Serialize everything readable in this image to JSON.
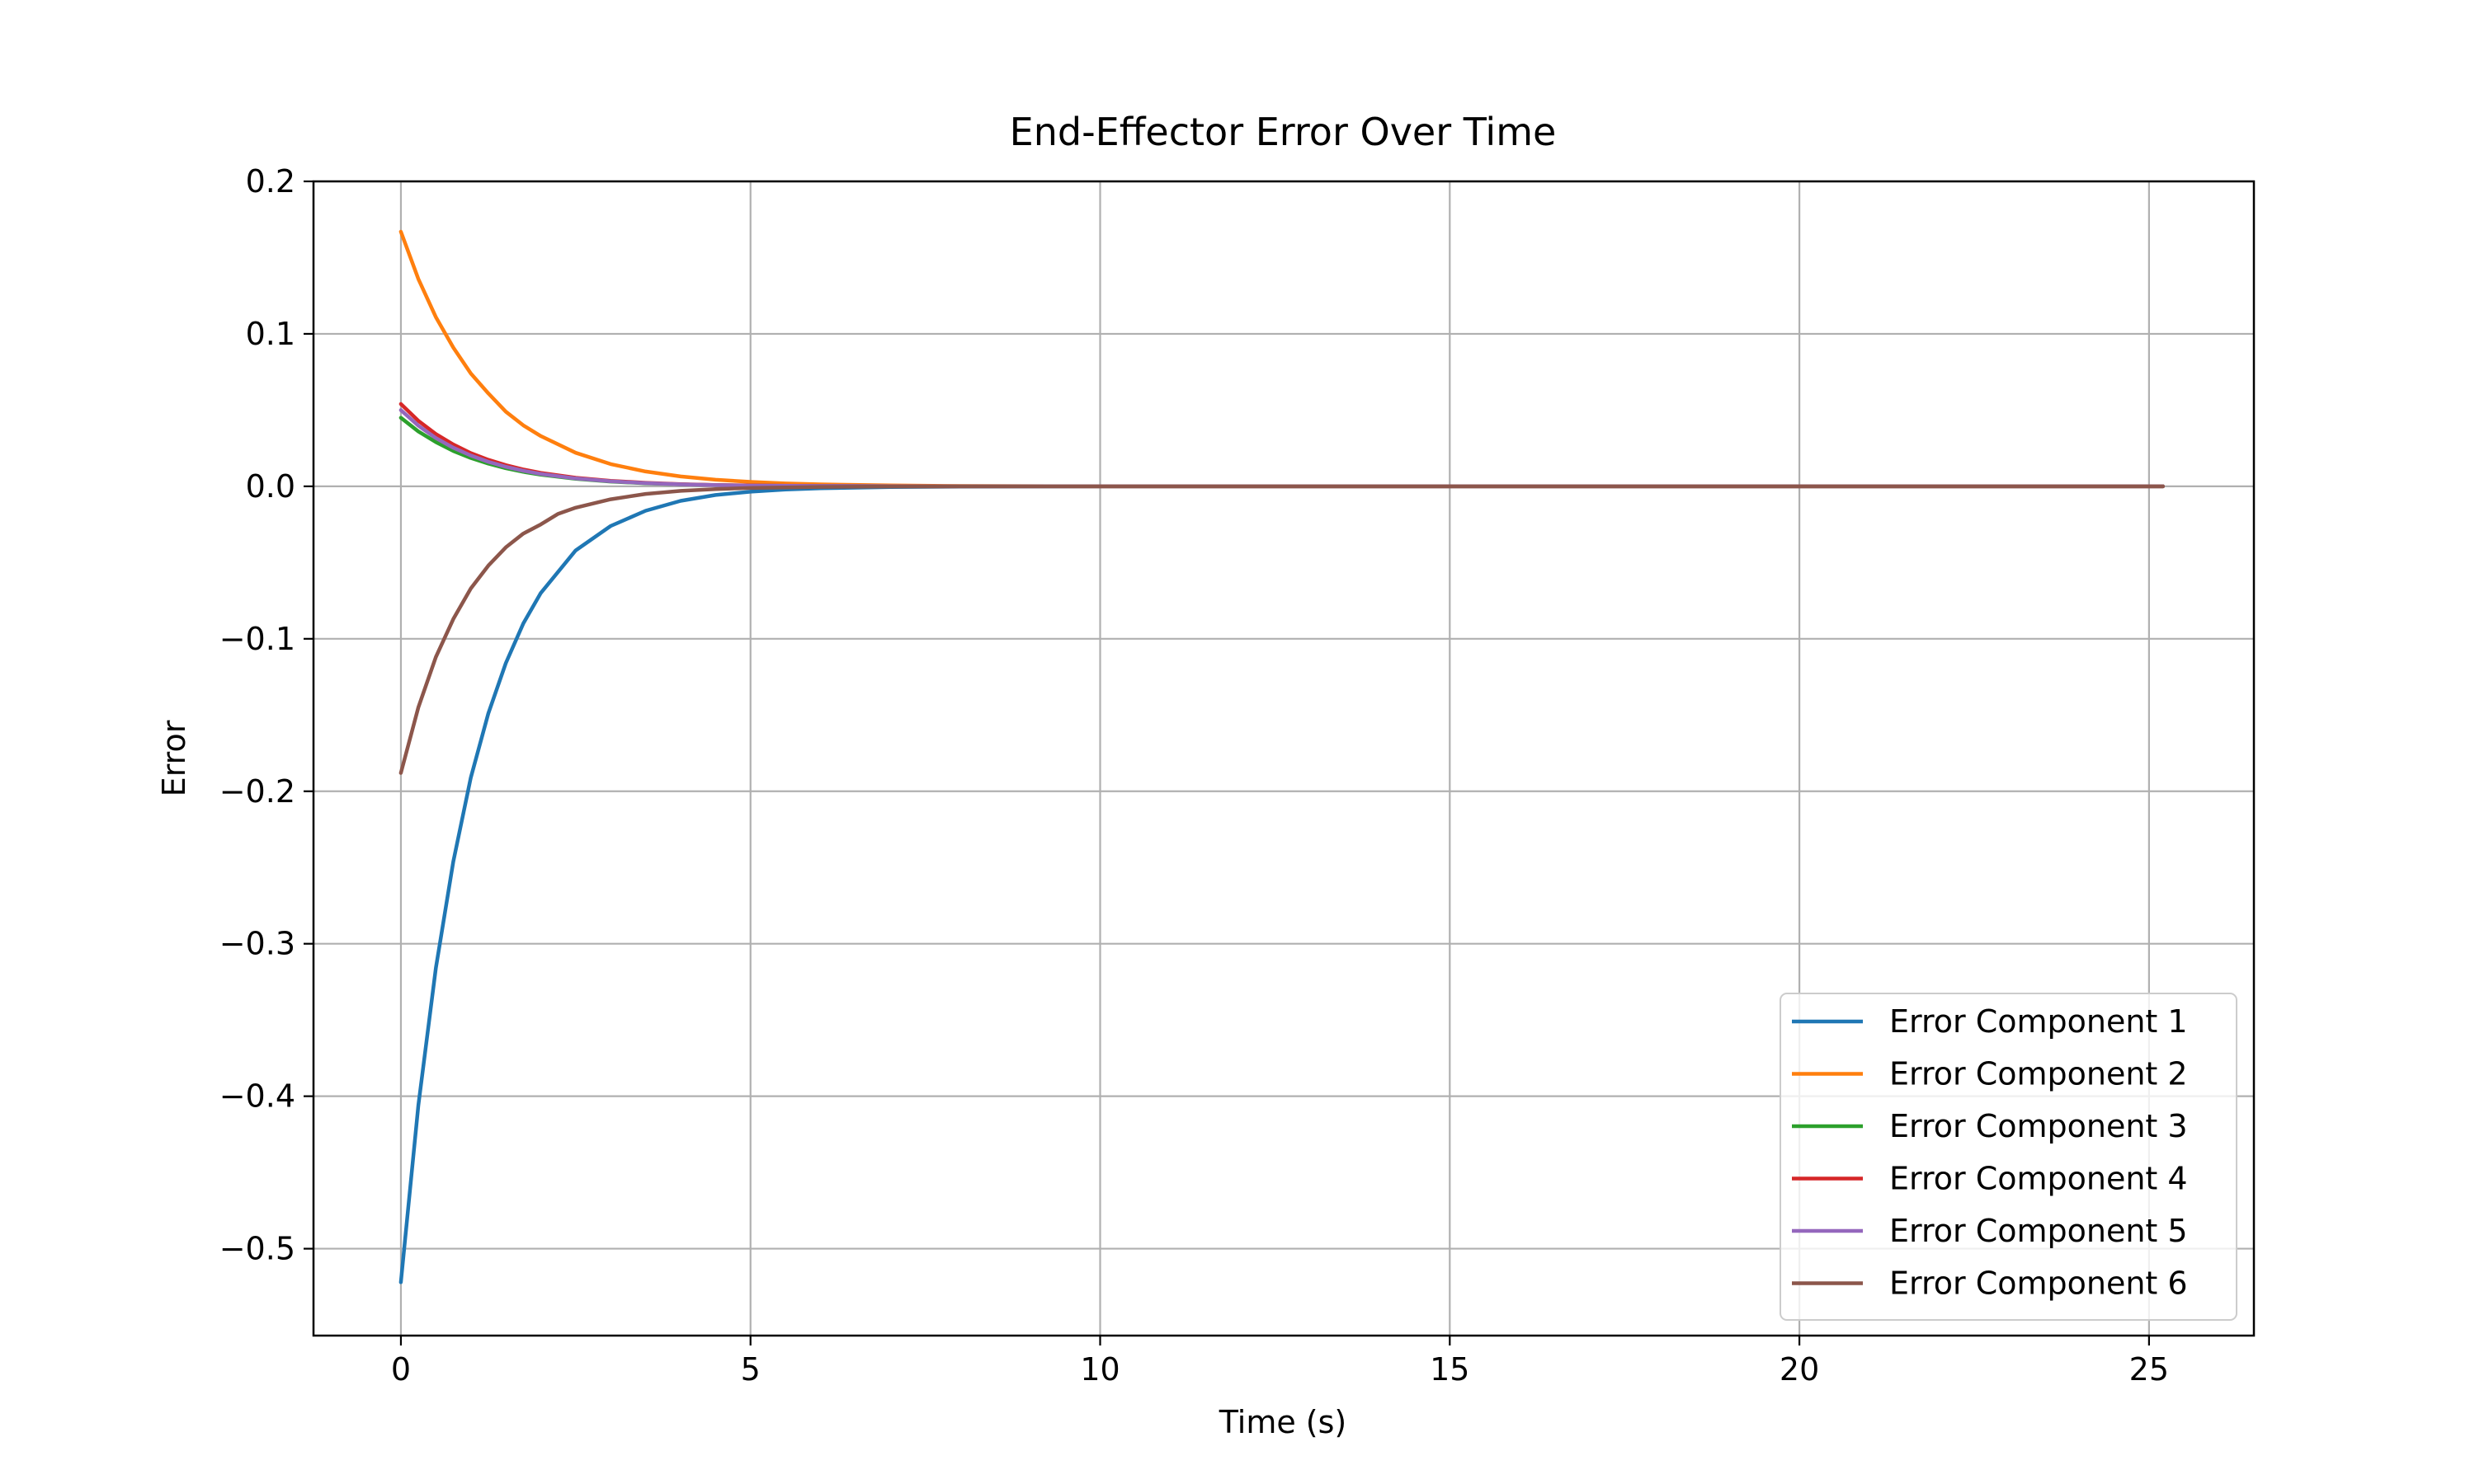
{
  "chart_data": {
    "type": "line",
    "title": "End-Effector Error Over Time",
    "xlabel": "Time (s)",
    "ylabel": "Error",
    "xlim": [
      -1.25,
      26.5
    ],
    "ylim": [
      -0.557,
      0.2
    ],
    "xticks": [
      0,
      5,
      10,
      15,
      20,
      25
    ],
    "xtick_labels": [
      "0",
      "5",
      "10",
      "15",
      "20",
      "25"
    ],
    "yticks": [
      0.2,
      0.1,
      0.0,
      -0.1,
      -0.2,
      -0.3,
      -0.4,
      -0.5
    ],
    "ytick_labels": [
      "0.2",
      "0.1",
      "0.0",
      "−0.1",
      "−0.2",
      "−0.3",
      "−0.4",
      "−0.5"
    ],
    "grid": true,
    "legend_position": "lower-right",
    "series": [
      {
        "name": "Error Component 1",
        "color": "#1f77b4",
        "x": [
          0,
          0.25,
          0.5,
          0.75,
          1.0,
          1.25,
          1.5,
          1.75,
          2.0,
          2.5,
          3.0,
          3.5,
          4.0,
          4.5,
          5.0,
          5.5,
          6.0,
          7.0,
          8.0,
          10.0,
          12.5,
          15.0,
          17.5,
          20.0,
          22.5,
          25.2
        ],
        "y": [
          -0.522,
          -0.406,
          -0.316,
          -0.246,
          -0.191,
          -0.149,
          -0.116,
          -0.09,
          -0.07,
          -0.042,
          -0.026,
          -0.016,
          -0.0095,
          -0.0057,
          -0.0035,
          -0.0021,
          -0.0013,
          -0.0005,
          -0.0002,
          0.0,
          0.0,
          0.0,
          0.0,
          0.0,
          0.0,
          0.0
        ]
      },
      {
        "name": "Error Component 2",
        "color": "#ff7f0e",
        "x": [
          0,
          0.25,
          0.5,
          0.75,
          1.0,
          1.25,
          1.5,
          1.75,
          2.0,
          2.5,
          3.0,
          3.5,
          4.0,
          4.5,
          5.0,
          5.5,
          6.0,
          7.0,
          8.0,
          10.0,
          12.5,
          15.0,
          17.5,
          20.0,
          22.5,
          25.2
        ],
        "y": [
          0.167,
          0.136,
          0.111,
          0.091,
          0.074,
          0.061,
          0.049,
          0.04,
          0.033,
          0.022,
          0.0146,
          0.0097,
          0.0065,
          0.0043,
          0.0029,
          0.0019,
          0.0013,
          0.0006,
          0.0002,
          0.0,
          0.0,
          0.0,
          0.0,
          0.0,
          0.0,
          0.0
        ]
      },
      {
        "name": "Error Component 3",
        "color": "#2ca02c",
        "x": [
          0,
          0.25,
          0.5,
          0.75,
          1.0,
          1.25,
          1.5,
          1.75,
          2.0,
          2.5,
          3.0,
          3.5,
          4.0,
          4.5,
          5.0,
          5.5,
          6.0,
          7.0,
          8.0,
          10.0,
          12.5,
          15.0,
          17.5,
          20.0,
          22.5,
          25.2
        ],
        "y": [
          0.045,
          0.036,
          0.029,
          0.0232,
          0.0186,
          0.0149,
          0.0119,
          0.0095,
          0.0076,
          0.0049,
          0.0031,
          0.002,
          0.0013,
          0.0008,
          0.0005,
          0.0003,
          0.0002,
          0.0001,
          0.0,
          0.0,
          0.0,
          0.0,
          0.0,
          0.0,
          0.0,
          0.0
        ]
      },
      {
        "name": "Error Component 4",
        "color": "#d62728",
        "x": [
          0,
          0.25,
          0.5,
          0.75,
          1.0,
          1.25,
          1.5,
          1.75,
          2.0,
          2.5,
          3.0,
          3.5,
          4.0,
          4.5,
          5.0,
          5.5,
          6.0,
          7.0,
          8.0,
          10.0,
          12.5,
          15.0,
          17.5,
          20.0,
          22.5,
          25.2
        ],
        "y": [
          0.054,
          0.043,
          0.0343,
          0.0274,
          0.0218,
          0.0174,
          0.0139,
          0.0111,
          0.0088,
          0.0056,
          0.0036,
          0.0023,
          0.0014,
          0.0009,
          0.0006,
          0.0004,
          0.0002,
          0.0001,
          0.0,
          0.0,
          0.0,
          0.0,
          0.0,
          0.0,
          0.0,
          0.0
        ]
      },
      {
        "name": "Error Component 5",
        "color": "#9467bd",
        "x": [
          0,
          0.25,
          0.5,
          0.75,
          1.0,
          1.25,
          1.5,
          1.75,
          2.0,
          2.5,
          3.0,
          3.5,
          4.0,
          4.5,
          5.0,
          5.5,
          6.0,
          7.0,
          8.0,
          10.0,
          12.5,
          15.0,
          17.5,
          20.0,
          22.5,
          25.2
        ],
        "y": [
          0.05,
          0.0398,
          0.0317,
          0.0253,
          0.0202,
          0.0161,
          0.0128,
          0.0102,
          0.0081,
          0.0052,
          0.0033,
          0.0021,
          0.0013,
          0.0008,
          0.0005,
          0.0003,
          0.0002,
          0.0001,
          0.0,
          0.0,
          0.0,
          0.0,
          0.0,
          0.0,
          0.0,
          0.0
        ]
      },
      {
        "name": "Error Component 6",
        "color": "#8c564b",
        "x": [
          0,
          0.25,
          0.5,
          0.75,
          1.0,
          1.25,
          1.5,
          1.75,
          2.0,
          2.25,
          2.5,
          3.0,
          3.5,
          4.0,
          4.5,
          5.0,
          5.5,
          6.0,
          7.0,
          8.0,
          10.0,
          12.5,
          15.0,
          17.5,
          20.0,
          22.5,
          25.2
        ],
        "y": [
          -0.188,
          -0.145,
          -0.112,
          -0.087,
          -0.067,
          -0.052,
          -0.04,
          -0.031,
          -0.025,
          -0.018,
          -0.014,
          -0.0085,
          -0.005,
          -0.003,
          -0.0018,
          -0.0011,
          -0.0007,
          -0.0004,
          -0.0001,
          0.0,
          0.0,
          0.0,
          0.0,
          0.0,
          0.0,
          0.0,
          0.0
        ]
      }
    ]
  }
}
